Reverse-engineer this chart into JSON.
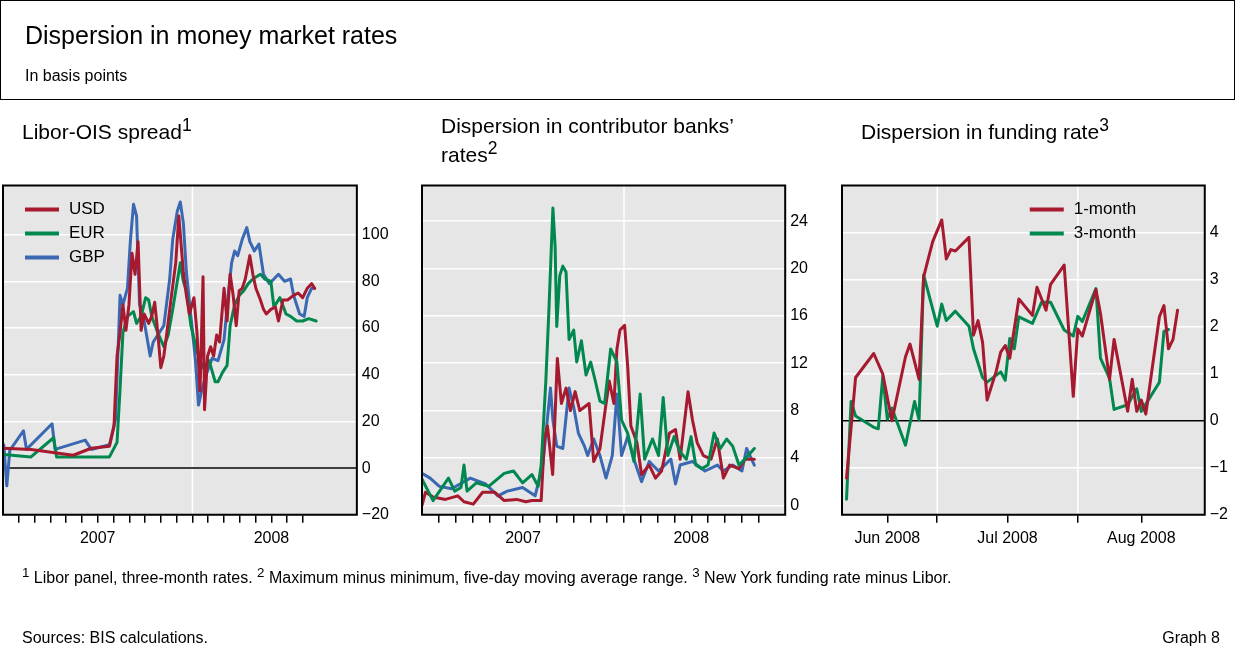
{
  "chart_data": [
    {
      "type": "other",
      "title": "Dispersion in money market rates",
      "subtitle": "In basis points",
      "annotations": [
        "$^{1}$ Libor panel, three-month rates.  $^{2}$ Maximum minus minimum, five-day moving average range.  $^{3}$ New York funding rate minus Libor.",
        "Sources: BIS calculations.",
        "Graph 8"
      ]
    },
    {
      "type": "line",
      "title": "Libor-OIS spread$^{1}$",
      "marker": "none",
      "grid": "y",
      "legend": "top left",
      "xlim": [
        2007,
        2008.868
      ],
      "xticks": [
        {
          "value": 2007.083,
          "label": null
        },
        {
          "value": 2007.167,
          "label": null
        },
        {
          "value": 2007.25,
          "label": null
        },
        {
          "value": 2007.333,
          "label": null
        },
        {
          "value": 2007.417,
          "label": null
        },
        {
          "value": 2007.5,
          "label": "2007"
        },
        {
          "value": 2007.583,
          "label": null
        },
        {
          "value": 2007.667,
          "label": null
        },
        {
          "value": 2007.75,
          "label": null
        },
        {
          "value": 2007.833,
          "label": null
        },
        {
          "value": 2007.917,
          "label": null
        },
        {
          "value": 2008,
          "label": null
        },
        {
          "value": 2008.083,
          "label": null
        },
        {
          "value": 2008.167,
          "label": null
        },
        {
          "value": 2008.25,
          "label": null
        },
        {
          "value": 2008.333,
          "label": null
        },
        {
          "value": 2008.417,
          "label": "2008"
        },
        {
          "value": 2008.5,
          "label": null
        },
        {
          "value": 2008.583,
          "label": null
        }
      ],
      "ylim": [
        -20,
        121
      ],
      "yticks": [
        -20,
        0,
        20,
        40,
        60,
        80,
        100
      ],
      "ref_lines": [
        {
          "axis": "x",
          "value": 2008,
          "color": "#ffffff"
        },
        {
          "axis": "y",
          "value": 0,
          "color": "#000000"
        }
      ],
      "series": [
        {
          "name": "USD",
          "color": "#a6192e",
          "x": [
            2007.004,
            2007.148,
            2007.371,
            2007.466,
            2007.562,
            2007.586,
            2007.602,
            2007.618,
            2007.633,
            2007.649,
            2007.665,
            2007.681,
            2007.697,
            2007.713,
            2007.729,
            2007.745,
            2007.769,
            2007.785,
            2007.801,
            2007.817,
            2007.833,
            2007.849,
            2007.865,
            2007.888,
            2007.912,
            2007.928,
            2007.952,
            2007.968,
            2007.984,
            2008.008,
            2008.024,
            2008.04,
            2008.056,
            2008.064,
            2008.08,
            2008.096,
            2008.112,
            2008.128,
            2008.143,
            2008.167,
            2008.183,
            2008.199,
            2008.215,
            2008.231,
            2008.247,
            2008.263,
            2008.279,
            2008.303,
            2008.319,
            2008.335,
            2008.359,
            2008.375,
            2008.39,
            2008.414,
            2008.438,
            2008.454,
            2008.478,
            2008.502,
            2008.534,
            2008.558,
            2008.582,
            2008.606,
            2008.629,
            2008.645
          ],
          "values": [
            8.5,
            8,
            5.5,
            8.5,
            9.4,
            18,
            48,
            58,
            70,
            59,
            70,
            92,
            83,
            97,
            59,
            66,
            62,
            65,
            71,
            58,
            43,
            48,
            58,
            73,
            88,
            108,
            84,
            74,
            66,
            73,
            58,
            33,
            82,
            25,
            48,
            52,
            48,
            57,
            54,
            77,
            63,
            83,
            74,
            61,
            76,
            77,
            81,
            91,
            83,
            77,
            72,
            68,
            66,
            68,
            69,
            63,
            72,
            72,
            74,
            75,
            73,
            77,
            79,
            77
          ]
        },
        {
          "name": "EUR",
          "color": "#00884f",
          "x": [
            2007.004,
            2007.148,
            2007.267,
            2007.283,
            2007.466,
            2007.562,
            2007.602,
            2007.618,
            2007.633,
            2007.657,
            2007.689,
            2007.705,
            2007.729,
            2007.753,
            2007.769,
            2007.785,
            2007.817,
            2007.849,
            2007.872,
            2007.896,
            2007.92,
            2007.936,
            2007.952,
            2007.968,
            2007.992,
            2008.024,
            2008.056,
            2008.088,
            2008.12,
            2008.135,
            2008.159,
            2008.183,
            2008.199,
            2008.223,
            2008.247,
            2008.271,
            2008.295,
            2008.319,
            2008.359,
            2008.382,
            2008.414,
            2008.43,
            2008.462,
            2008.494,
            2008.518,
            2008.55,
            2008.582,
            2008.614,
            2008.653
          ],
          "values": [
            5.8,
            4.8,
            13,
            4.8,
            4.8,
            4.8,
            11,
            34,
            58,
            65,
            67,
            62,
            65,
            73,
            72,
            65,
            58,
            52,
            57,
            68,
            80,
            88,
            80,
            76,
            61,
            50,
            43,
            46,
            37,
            37,
            41,
            44,
            61,
            70,
            74,
            76,
            79,
            81,
            83,
            81,
            80,
            69,
            73,
            66,
            65,
            63,
            63,
            64,
            63
          ]
        },
        {
          "name": "GBP",
          "color": "#3a68b2",
          "x": [
            2007.004,
            2007.02,
            2007.036,
            2007.108,
            2007.124,
            2007.259,
            2007.275,
            2007.434,
            2007.466,
            2007.562,
            2007.594,
            2007.618,
            2007.633,
            2007.657,
            2007.673,
            2007.689,
            2007.705,
            2007.721,
            2007.745,
            2007.777,
            2007.793,
            2007.817,
            2007.849,
            2007.88,
            2007.896,
            2007.92,
            2007.936,
            2007.952,
            2007.968,
            2007.992,
            2008.016,
            2008.032,
            2008.048,
            2008.072,
            2008.104,
            2008.135,
            2008.167,
            2008.191,
            2008.207,
            2008.223,
            2008.239,
            2008.263,
            2008.287,
            2008.303,
            2008.327,
            2008.351,
            2008.375,
            2008.406,
            2008.43,
            2008.454,
            2008.486,
            2008.518,
            2008.534,
            2008.566,
            2008.59,
            2008.606,
            2008.629,
            2008.645
          ],
          "values": [
            10,
            -7.6,
            7.6,
            16,
            8,
            19,
            8,
            12,
            8,
            10,
            21,
            74,
            70,
            77,
            98,
            113,
            108,
            70,
            63,
            48,
            54,
            57,
            61,
            81,
            98,
            110,
            114,
            105,
            84,
            65,
            46,
            27,
            33,
            40,
            47,
            46,
            55,
            76,
            88,
            93,
            91,
            98,
            103,
            97,
            93,
            96,
            83,
            79,
            81,
            83,
            80,
            81,
            74,
            66,
            65,
            73,
            77,
            77
          ]
        }
      ]
    },
    {
      "type": "line",
      "title": "Dispersion in contributor banks’ rates$^{2}$",
      "marker": "none",
      "grid": "y",
      "xlim": [
        2007,
        2008.798
      ],
      "xticks": [
        {
          "value": 2007.083,
          "label": null
        },
        {
          "value": 2007.167,
          "label": null
        },
        {
          "value": 2007.25,
          "label": null
        },
        {
          "value": 2007.333,
          "label": null
        },
        {
          "value": 2007.417,
          "label": null
        },
        {
          "value": 2007.5,
          "label": "2007"
        },
        {
          "value": 2007.583,
          "label": null
        },
        {
          "value": 2007.667,
          "label": null
        },
        {
          "value": 2007.75,
          "label": null
        },
        {
          "value": 2007.833,
          "label": null
        },
        {
          "value": 2007.917,
          "label": null
        },
        {
          "value": 2008,
          "label": null
        },
        {
          "value": 2008.083,
          "label": null
        },
        {
          "value": 2008.167,
          "label": null
        },
        {
          "value": 2008.25,
          "label": null
        },
        {
          "value": 2008.333,
          "label": "2008"
        },
        {
          "value": 2008.417,
          "label": null
        },
        {
          "value": 2008.5,
          "label": null
        },
        {
          "value": 2008.583,
          "label": null
        },
        {
          "value": 2008.667,
          "label": null
        }
      ],
      "ylim": [
        -0.8,
        27
      ],
      "yticks": [
        0,
        4,
        8,
        12,
        16,
        20,
        24
      ],
      "ref_lines": [
        {
          "axis": "x",
          "value": 2008,
          "color": "#ffffff"
        }
      ],
      "series": [
        {
          "color": "#00884f",
          "x": [
            2007,
            2007.055,
            2007.131,
            2007.162,
            2007.193,
            2007.208,
            2007.223,
            2007.269,
            2007.33,
            2007.407,
            2007.453,
            2007.498,
            2007.544,
            2007.575,
            2007.59,
            2007.613,
            2007.628,
            2007.648,
            2007.659,
            2007.667,
            2007.682,
            2007.697,
            2007.713,
            2007.728,
            2007.751,
            2007.766,
            2007.789,
            2007.812,
            2007.835,
            2007.858,
            2007.881,
            2007.904,
            2007.934,
            2007.965,
            2007.988,
            2008.018,
            2008.049,
            2008.08,
            2008.102,
            2008.141,
            2008.171,
            2008.194,
            2008.217,
            2008.248,
            2008.278,
            2008.309,
            2008.332,
            2008.355,
            2008.385,
            2008.416,
            2008.446,
            2008.477,
            2008.508,
            2008.538,
            2008.569,
            2008.599,
            2008.645
          ],
          "values": [
            2.2,
            0.4,
            2.3,
            1.2,
            1.5,
            3.4,
            1.2,
            1.9,
            1.6,
            2.7,
            2.9,
            1.9,
            2.6,
            1.6,
            3.4,
            10.5,
            16.4,
            25.1,
            21.9,
            15.1,
            19.4,
            20.2,
            19.7,
            14,
            14.8,
            12.1,
            13.9,
            11,
            12.1,
            10.5,
            8.8,
            8.6,
            13.2,
            12.1,
            7.2,
            6.1,
            3.7,
            9.4,
            3.9,
            5.6,
            4.2,
            9.1,
            4.2,
            5.8,
            4.5,
            3.9,
            5.8,
            3.4,
            3.1,
            3.4,
            6.1,
            4.8,
            5.6,
            5,
            3.4,
            3.9,
            4.8
          ]
        },
        {
          "color": "#a6192e",
          "x": [
            2007,
            2007.017,
            2007.055,
            2007.116,
            2007.177,
            2007.208,
            2007.254,
            2007.3,
            2007.361,
            2007.407,
            2007.468,
            2007.514,
            2007.544,
            2007.59,
            2007.606,
            2007.621,
            2007.647,
            2007.67,
            2007.69,
            2007.713,
            2007.735,
            2007.758,
            2007.781,
            2007.804,
            2007.827,
            2007.85,
            2007.881,
            2007.904,
            2007.927,
            2007.95,
            2007.965,
            2007.98,
            2008.003,
            2008.018,
            2008.034,
            2008.064,
            2008.087,
            2008.125,
            2008.156,
            2008.186,
            2008.225,
            2008.255,
            2008.278,
            2008.317,
            2008.339,
            2008.362,
            2008.393,
            2008.431,
            2008.462,
            2008.492,
            2008.523,
            2008.569,
            2008.599,
            2008.645
          ],
          "values": [
            0,
            1.1,
            0.7,
            0.5,
            0.8,
            0.3,
            0.1,
            1.1,
            1.1,
            0.4,
            0.5,
            0.3,
            0.4,
            0.4,
            5.6,
            6.7,
            2.6,
            12.4,
            8.6,
            9.9,
            8,
            9.6,
            8,
            8.3,
            8.6,
            3.7,
            4.8,
            7.7,
            10.5,
            8.6,
            13.2,
            14.8,
            15.2,
            11.8,
            6.7,
            5.3,
            2.6,
            3.4,
            2.3,
            2.9,
            6.1,
            6.4,
            3.9,
            9.6,
            7.2,
            5.3,
            4.2,
            3.9,
            5.6,
            2.3,
            3.4,
            3.1,
            3.9,
            3.9
          ]
        },
        {
          "color": "#3a68b2",
          "x": [
            2007,
            2007.04,
            2007.086,
            2007.147,
            2007.239,
            2007.315,
            2007.376,
            2007.422,
            2007.498,
            2007.56,
            2007.598,
            2007.636,
            2007.648,
            2007.667,
            2007.697,
            2007.728,
            2007.751,
            2007.774,
            2007.804,
            2007.82,
            2007.85,
            2007.881,
            2007.911,
            2007.942,
            2007.965,
            2007.988,
            2008.018,
            2008.049,
            2008.087,
            2008.125,
            2008.171,
            2008.202,
            2008.232,
            2008.255,
            2008.278,
            2008.339,
            2008.401,
            2008.462,
            2008.492,
            2008.538,
            2008.584,
            2008.607,
            2008.645
          ],
          "values": [
            2.7,
            2.3,
            1.6,
            1.4,
            2.3,
            1.8,
            0.8,
            1.2,
            1.5,
            0.8,
            3.4,
            9.9,
            7.2,
            5,
            4.8,
            9.9,
            8.3,
            6.1,
            5,
            4.2,
            5.6,
            4.2,
            2.3,
            4.2,
            9.4,
            4.2,
            5.8,
            3.9,
            2,
            3.7,
            2.9,
            3.4,
            3.9,
            1.8,
            3.4,
            3.7,
            2.9,
            3.4,
            2.9,
            3.4,
            2.9,
            4.8,
            3.4
          ]
        }
      ]
    },
    {
      "type": "line",
      "title": "Dispersion in funding rate$^{3}$",
      "marker": "none",
      "grid": "y",
      "legend": "top right",
      "xlim": [
        "2008-06-10",
        "2008-08-29"
      ],
      "xticks": [
        {
          "value": "2008-06-20",
          "label": "Jun 2008"
        },
        {
          "value": "2008-07-01",
          "label": null
        },
        {
          "value": "2008-07-16T12:00",
          "label": "Jul 2008"
        },
        {
          "value": "2008-08-01",
          "label": null
        },
        {
          "value": "2008-08-15",
          "label": "Aug 2008"
        }
      ],
      "ylim": [
        -2,
        5
      ],
      "yticks": [
        -2,
        -1,
        0,
        1,
        2,
        3,
        4
      ],
      "ref_lines": [
        {
          "axis": "x",
          "value": "2008-07-01",
          "color": "#ffffff"
        },
        {
          "axis": "x",
          "value": "2008-08-01",
          "color": "#ffffff"
        },
        {
          "axis": "y",
          "value": 0,
          "color": "#000000"
        }
      ],
      "series": [
        {
          "name": "1-month",
          "color": "#a6192e",
          "x": [
            "2008-06-11",
            "2008-06-13",
            "2008-06-17",
            "2008-06-19",
            "2008-06-21",
            "2008-06-24",
            "2008-06-25",
            "2008-06-27",
            "2008-06-28",
            "2008-06-30",
            "2008-07-02",
            "2008-07-03",
            "2008-07-04",
            "2008-07-05",
            "2008-07-08",
            "2008-07-09",
            "2008-07-10",
            "2008-07-11",
            "2008-07-12",
            "2008-07-14",
            "2008-07-15",
            "2008-07-16",
            "2008-07-17",
            "2008-07-19",
            "2008-07-22",
            "2008-07-23",
            "2008-07-25",
            "2008-07-26",
            "2008-07-29",
            "2008-07-31",
            "2008-08-01",
            "2008-08-02",
            "2008-08-05",
            "2008-08-06",
            "2008-08-08",
            "2008-08-09",
            "2008-08-12",
            "2008-08-13",
            "2008-08-14",
            "2008-08-15",
            "2008-08-16",
            "2008-08-19",
            "2008-08-20",
            "2008-08-21",
            "2008-08-22",
            "2008-08-23"
          ],
          "values": [
            -1.22,
            0.92,
            1.43,
            0.99,
            0,
            1.36,
            1.63,
            0.88,
            3.06,
            3.81,
            4.27,
            3.44,
            3.64,
            3.61,
            3.9,
            1.82,
            2.13,
            1.67,
            0.44,
            1.05,
            1.46,
            1.6,
            1.33,
            2.59,
            2.24,
            2.84,
            2.35,
            2.9,
            3.31,
            0.52,
            1.95,
            1.8,
            2.79,
            2.28,
            0.88,
            1.73,
            0.2,
            0.88,
            0.2,
            0.44,
            0.14,
            2.21,
            2.45,
            1.53,
            1.73,
            2.35
          ]
        },
        {
          "name": "3-month",
          "color": "#00884f",
          "x": [
            "2008-06-11",
            "2008-06-12",
            "2008-06-13",
            "2008-06-17",
            "2008-06-18",
            "2008-06-19",
            "2008-06-20",
            "2008-06-21",
            "2008-06-24",
            "2008-06-26",
            "2008-06-27",
            "2008-06-28",
            "2008-07-01",
            "2008-07-02",
            "2008-07-03",
            "2008-07-05",
            "2008-07-08",
            "2008-07-09",
            "2008-07-11",
            "2008-07-12",
            "2008-07-15",
            "2008-07-16",
            "2008-07-17",
            "2008-07-18",
            "2008-07-19",
            "2008-07-22",
            "2008-07-24",
            "2008-07-26",
            "2008-07-29",
            "2008-07-31",
            "2008-08-01",
            "2008-08-02",
            "2008-08-05",
            "2008-08-06",
            "2008-08-08",
            "2008-08-09",
            "2008-08-12",
            "2008-08-14",
            "2008-08-15",
            "2008-08-19",
            "2008-08-20",
            "2008-08-21"
          ],
          "values": [
            -1.67,
            0.41,
            0.1,
            -0.14,
            -0.17,
            0.95,
            0.03,
            0.27,
            -0.52,
            0.41,
            0.02,
            3.1,
            2.01,
            2.48,
            2.13,
            2.33,
            2.01,
            1.53,
            0.92,
            0.82,
            1.04,
            0.86,
            1.75,
            1.53,
            2.21,
            2.07,
            2.52,
            2.52,
            1.93,
            1.8,
            2.22,
            2.11,
            2.81,
            1.33,
            0.9,
            0.24,
            0.34,
            0.68,
            0.2,
            0.82,
            1.9,
            1.94
          ]
        }
      ]
    }
  ]
}
